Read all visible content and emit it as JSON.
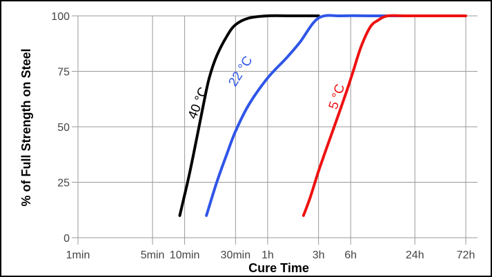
{
  "chart_data": {
    "type": "line",
    "title": "",
    "xlabel": "Cure Time",
    "ylabel": "% of Full Strength on Steel",
    "x_scale": "log",
    "x_unit": "minutes",
    "xlim": [
      1,
      4320
    ],
    "ylim": [
      0,
      100
    ],
    "grid": true,
    "x_ticks": [
      {
        "value": 1,
        "label": "1min"
      },
      {
        "value": 5,
        "label": "5min"
      },
      {
        "value": 10,
        "label": "10min"
      },
      {
        "value": 30,
        "label": "30min"
      },
      {
        "value": 60,
        "label": "1h"
      },
      {
        "value": 180,
        "label": "3h"
      },
      {
        "value": 360,
        "label": "6h"
      },
      {
        "value": 1440,
        "label": "24h"
      },
      {
        "value": 4320,
        "label": "72h"
      }
    ],
    "y_ticks": [
      {
        "value": 0,
        "label": "0"
      },
      {
        "value": 25,
        "label": "25"
      },
      {
        "value": 50,
        "label": "50"
      },
      {
        "value": 75,
        "label": "75"
      },
      {
        "value": 100,
        "label": "100"
      }
    ],
    "series": [
      {
        "name": "40 °C",
        "color": "#000000",
        "x": [
          9,
          11,
          13,
          15,
          17,
          20,
          25,
          30,
          40,
          60,
          100,
          180
        ],
        "y": [
          10,
          28,
          45,
          60,
          72,
          82,
          91,
          96,
          99,
          100,
          100,
          100
        ]
      },
      {
        "name": "22 °C",
        "color": "#2f55e8",
        "x": [
          16,
          20,
          25,
          30,
          40,
          60,
          90,
          120,
          180,
          300,
          600,
          1440
        ],
        "y": [
          10,
          25,
          38,
          48,
          60,
          72,
          81,
          88,
          99,
          100,
          100,
          100
        ]
      },
      {
        "name": "5 °C",
        "color": "#ee1111",
        "x": [
          130,
          150,
          180,
          220,
          270,
          330,
          380,
          450,
          550,
          650,
          800,
          1200,
          4320
        ],
        "y": [
          10,
          18,
          30,
          42,
          54,
          66,
          75,
          86,
          95,
          98,
          100,
          100,
          100
        ]
      }
    ]
  }
}
